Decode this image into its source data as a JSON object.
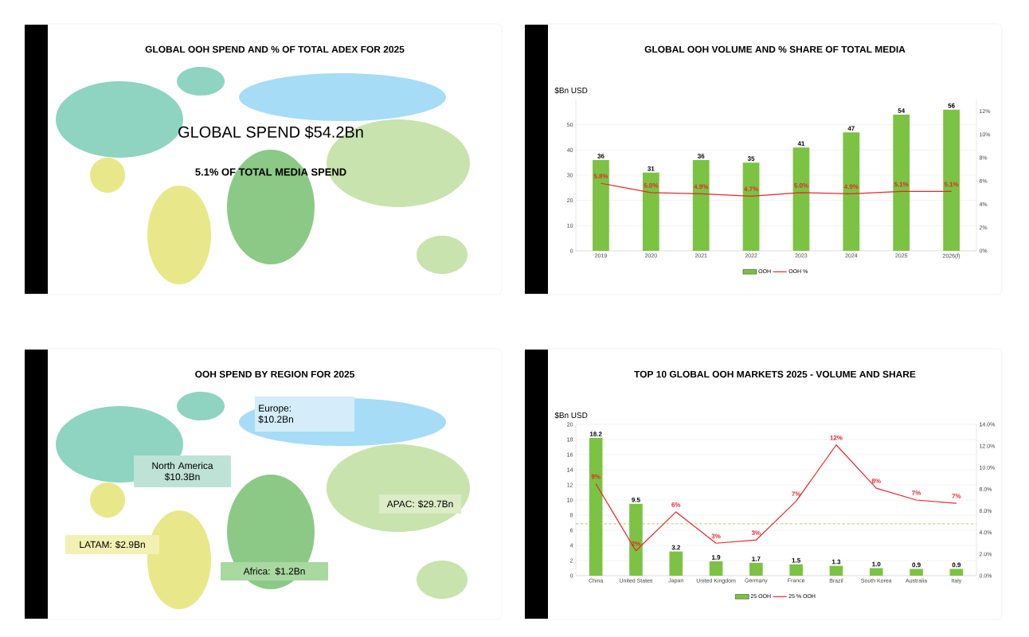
{
  "chart_data": [
    {
      "type": "other",
      "title": "GLOBAL OOH SPEND AND % OF TOTAL ADEX FOR 2025",
      "annotations": [
        "GLOBAL SPEND $54.2Bn",
        "5.1% OF TOTAL MEDIA SPEND"
      ]
    },
    {
      "type": "bar",
      "title": "GLOBAL OOH VOLUME AND % SHARE OF TOTAL MEDIA",
      "ylabel": "$Bn USD",
      "categories": [
        "2019",
        "2020",
        "2021",
        "2022",
        "2023",
        "2024",
        "2025",
        "2026(f)"
      ],
      "series": [
        {
          "name": "OOH",
          "type": "bar",
          "color": "#7cc243",
          "values": [
            36,
            31,
            36,
            35,
            41,
            47,
            54,
            56
          ],
          "value_labels": [
            "36",
            "31",
            "36",
            "35",
            "41",
            "47",
            "54",
            "56"
          ]
        },
        {
          "name": "OOH %",
          "type": "line",
          "axis": "y2",
          "color": "#e8262b",
          "values": [
            5.8,
            5.0,
            4.9,
            4.7,
            5.0,
            4.9,
            5.1,
            5.1
          ],
          "value_labels": [
            "5.8%",
            "5.0%",
            "4.9%",
            "4.7%",
            "5.0%",
            "4.9%",
            "5.1%",
            "5.1%"
          ]
        }
      ],
      "ylim": [
        0,
        60
      ],
      "yticks": [
        0,
        10,
        20,
        30,
        40,
        50
      ],
      "y2lim": [
        0,
        13
      ],
      "y2ticks": [
        {
          "value": 0,
          "label": "0%"
        },
        {
          "value": 2,
          "label": "2%"
        },
        {
          "value": 4,
          "label": "4%"
        },
        {
          "value": 6,
          "label": "6%"
        },
        {
          "value": 8,
          "label": "8%"
        },
        {
          "value": 10,
          "label": "10%"
        },
        {
          "value": 12,
          "label": "12%"
        }
      ],
      "grid": "y",
      "legend": "bottom"
    },
    {
      "type": "other",
      "title": "OOH SPEND BY REGION FOR 2025",
      "annotations": [
        "Europe: $10.2Bn",
        "North America $10.3Bn",
        "APAC: $29.7Bn",
        "LATAM: $2.9Bn",
        "Africa: $1.2Bn"
      ],
      "colors": [
        "#d4edf9",
        "#bfe2d6",
        "#dcecc6",
        "#f2f1b3",
        "#a9d8a1"
      ]
    },
    {
      "type": "bar",
      "title": "TOP 10 GLOBAL OOH MARKETS 2025 - VOLUME AND SHARE",
      "ylabel": "$Bn USD",
      "categories": [
        "China",
        "United States",
        "Japan",
        "United Kingdom",
        "Germany",
        "France",
        "Brazil",
        "South Korea",
        "Australia",
        "Italy"
      ],
      "series": [
        {
          "name": "25 OOH",
          "type": "bar",
          "color": "#7cc243",
          "values": [
            18.2,
            9.5,
            3.2,
            1.9,
            1.7,
            1.5,
            1.3,
            1.0,
            0.9,
            0.9
          ],
          "value_labels": [
            "18.2",
            "9.5",
            "3.2",
            "1.9",
            "1.7",
            "1.5",
            "1.3",
            "1.0",
            "0.9",
            "0.9"
          ]
        },
        {
          "name": "25 % OOH",
          "type": "line",
          "axis": "y2",
          "color": "#e8262b",
          "values": [
            8.5,
            2.3,
            5.9,
            3.0,
            3.3,
            6.9,
            12.1,
            8.1,
            7.0,
            6.7
          ],
          "value_labels": [
            "9%",
            "2%",
            "6%",
            "3%",
            "3%",
            "7%",
            "12%",
            "8%",
            "7%",
            "7%"
          ]
        }
      ],
      "ylim": [
        0,
        20
      ],
      "yticks": [
        0,
        2,
        4,
        6,
        8,
        10,
        12,
        14,
        16,
        18,
        20
      ],
      "y2lim": [
        0,
        14
      ],
      "y2ticks": [
        {
          "value": 0,
          "label": "0.0%"
        },
        {
          "value": 2,
          "label": "2.0%"
        },
        {
          "value": 4,
          "label": "4.0%"
        },
        {
          "value": 6,
          "label": "6.0%"
        },
        {
          "value": 8,
          "label": "8.0%"
        },
        {
          "value": 10,
          "label": "10.0%"
        },
        {
          "value": 12,
          "label": "12.0%"
        },
        {
          "value": 14,
          "label": "14.0%"
        }
      ],
      "ref_lines": [
        {
          "axis": "y2",
          "value": 4.8,
          "color": "#8cc63f",
          "line_style": "dashed"
        }
      ],
      "grid": "y",
      "legend": "bottom"
    }
  ]
}
